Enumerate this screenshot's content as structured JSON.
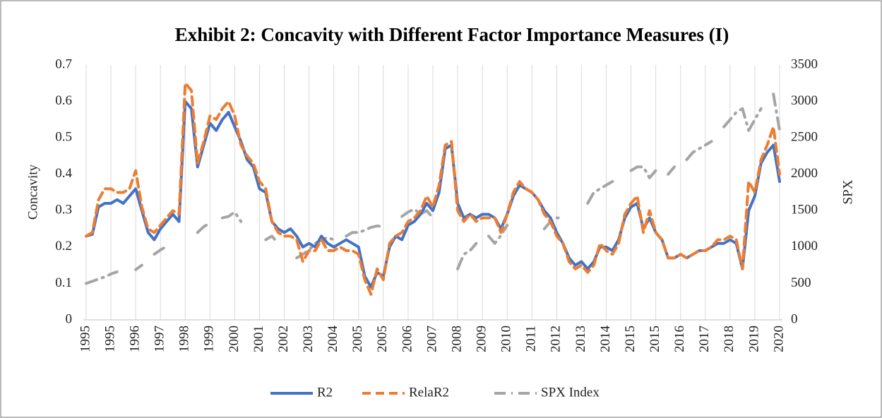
{
  "chart_data": {
    "type": "line",
    "title": "Exhibit 2: Concavity with Different Factor Importance Measures (I)",
    "y_label": "Concavity",
    "y2_label": "SPX",
    "categories": [
      "1995",
      null,
      null,
      null,
      "1995",
      null,
      null,
      null,
      "1996",
      null,
      null,
      null,
      "1997",
      null,
      null,
      null,
      "1998",
      null,
      null,
      null,
      "1999",
      null,
      null,
      null,
      "2000",
      null,
      null,
      null,
      "2001",
      null,
      null,
      null,
      "2002",
      null,
      null,
      null,
      "2003",
      null,
      null,
      null,
      "2004",
      null,
      null,
      null,
      "2005",
      null,
      null,
      null,
      "2005",
      null,
      null,
      null,
      "2006",
      null,
      null,
      null,
      "2007",
      null,
      null,
      null,
      "2008",
      null,
      null,
      null,
      "2009",
      null,
      null,
      null,
      "2010",
      null,
      null,
      null,
      "2011",
      null,
      null,
      null,
      "2012",
      null,
      null,
      null,
      "2013",
      null,
      null,
      null,
      "2014",
      null,
      null,
      null,
      "2015",
      null,
      null,
      null,
      "2015",
      null,
      null,
      null,
      "2016",
      null,
      null,
      null,
      "2017",
      null,
      null,
      null,
      "2018",
      null,
      null,
      null,
      "2019",
      null,
      null,
      null,
      "2020"
    ],
    "series": [
      {
        "name": "R2",
        "color": "#4472c4",
        "line_style": "solid",
        "axis": "y",
        "values": [
          0.23,
          0.235,
          0.31,
          0.32,
          0.32,
          0.33,
          0.32,
          0.34,
          0.36,
          0.3,
          0.24,
          0.22,
          0.25,
          0.27,
          0.29,
          0.27,
          0.6,
          0.58,
          0.42,
          0.48,
          0.54,
          0.52,
          0.55,
          0.57,
          0.53,
          0.49,
          0.44,
          0.42,
          0.36,
          0.35,
          0.27,
          0.25,
          0.24,
          0.25,
          0.23,
          0.2,
          0.21,
          0.2,
          0.23,
          0.21,
          0.2,
          0.21,
          0.22,
          0.21,
          0.2,
          0.12,
          0.09,
          0.13,
          0.12,
          0.2,
          0.23,
          0.22,
          0.26,
          0.27,
          0.29,
          0.32,
          0.3,
          0.35,
          0.47,
          0.48,
          0.32,
          0.28,
          0.29,
          0.28,
          0.29,
          0.29,
          0.28,
          0.25,
          0.29,
          0.34,
          0.37,
          0.36,
          0.35,
          0.33,
          0.3,
          0.28,
          0.24,
          0.21,
          0.17,
          0.15,
          0.16,
          0.14,
          0.16,
          0.2,
          0.2,
          0.19,
          0.22,
          0.28,
          0.31,
          0.32,
          0.25,
          0.28,
          0.24,
          0.22,
          0.17,
          0.17,
          0.18,
          0.17,
          0.18,
          0.19,
          0.19,
          0.2,
          0.21,
          0.21,
          0.22,
          0.21,
          0.14,
          0.3,
          0.34,
          0.43,
          0.46,
          0.48,
          0.38
        ]
      },
      {
        "name": "RelaR2",
        "color": "#ed7d31",
        "line_style": "dashed",
        "axis": "y",
        "values": [
          0.23,
          0.24,
          0.33,
          0.36,
          0.36,
          0.35,
          0.35,
          0.36,
          0.41,
          0.31,
          0.25,
          0.24,
          0.26,
          0.28,
          0.3,
          0.29,
          0.65,
          0.63,
          0.43,
          0.49,
          0.56,
          0.55,
          0.58,
          0.6,
          0.56,
          0.48,
          0.45,
          0.43,
          0.38,
          0.36,
          0.27,
          0.24,
          0.23,
          0.23,
          0.22,
          0.16,
          0.19,
          0.19,
          0.22,
          0.19,
          0.19,
          0.2,
          0.19,
          0.19,
          0.18,
          0.11,
          0.07,
          0.14,
          0.11,
          0.21,
          0.23,
          0.24,
          0.27,
          0.28,
          0.3,
          0.34,
          0.31,
          0.37,
          0.48,
          0.49,
          0.3,
          0.27,
          0.29,
          0.27,
          0.28,
          0.28,
          0.28,
          0.24,
          0.29,
          0.35,
          0.38,
          0.36,
          0.35,
          0.33,
          0.29,
          0.27,
          0.23,
          0.21,
          0.16,
          0.14,
          0.15,
          0.13,
          0.15,
          0.21,
          0.19,
          0.18,
          0.21,
          0.29,
          0.32,
          0.34,
          0.24,
          0.3,
          0.24,
          0.22,
          0.17,
          0.17,
          0.18,
          0.17,
          0.18,
          0.19,
          0.19,
          0.2,
          0.22,
          0.22,
          0.23,
          0.22,
          0.14,
          0.38,
          0.35,
          0.44,
          0.48,
          0.53,
          0.4
        ]
      },
      {
        "name": "SPX Index",
        "color": "#a5a5a5",
        "line_style": "dash-dot",
        "axis": "y2",
        "values": [
          500,
          530,
          560,
          590,
          630,
          660,
          null,
          null,
          690,
          750,
          null,
          900,
          960,
          1010,
          null,
          1000,
          null,
          null,
          1200,
          1280,
          1330,
          null,
          1400,
          1420,
          1480,
          1350,
          null,
          1250,
          null,
          1100,
          1150,
          1050,
          null,
          null,
          850,
          900,
          960,
          1050,
          1100,
          1130,
          1100,
          null,
          1150,
          1200,
          1200,
          1230,
          1270,
          1290,
          1280,
          null,
          null,
          1420,
          1480,
          1520,
          1450,
          1500,
          1400,
          null,
          1000,
          null,
          700,
          900,
          950,
          1050,
          null,
          1150,
          1050,
          1160,
          1300,
          null,
          null,
          1300,
          null,
          null,
          1250,
          1350,
          1400,
          1400,
          null,
          1500,
          null,
          1600,
          1750,
          1800,
          1850,
          1900,
          null,
          null,
          2050,
          2100,
          2100,
          1950,
          2050,
          null,
          2000,
          2100,
          null,
          2200,
          2300,
          2350,
          2400,
          2450,
          null,
          2650,
          2750,
          2850,
          2900,
          2600,
          2750,
          2900,
          null,
          3100,
          2600
        ]
      }
    ],
    "ylim": [
      0,
      0.7
    ],
    "yticks": [
      0,
      0.1,
      0.2,
      0.3,
      0.4,
      0.5,
      0.6,
      0.7
    ],
    "y2lim": [
      0,
      3500
    ],
    "y2ticks": [
      0,
      500,
      1000,
      1500,
      2000,
      2500,
      3000,
      3500
    ],
    "xgrid": true,
    "legend": "bottom"
  }
}
